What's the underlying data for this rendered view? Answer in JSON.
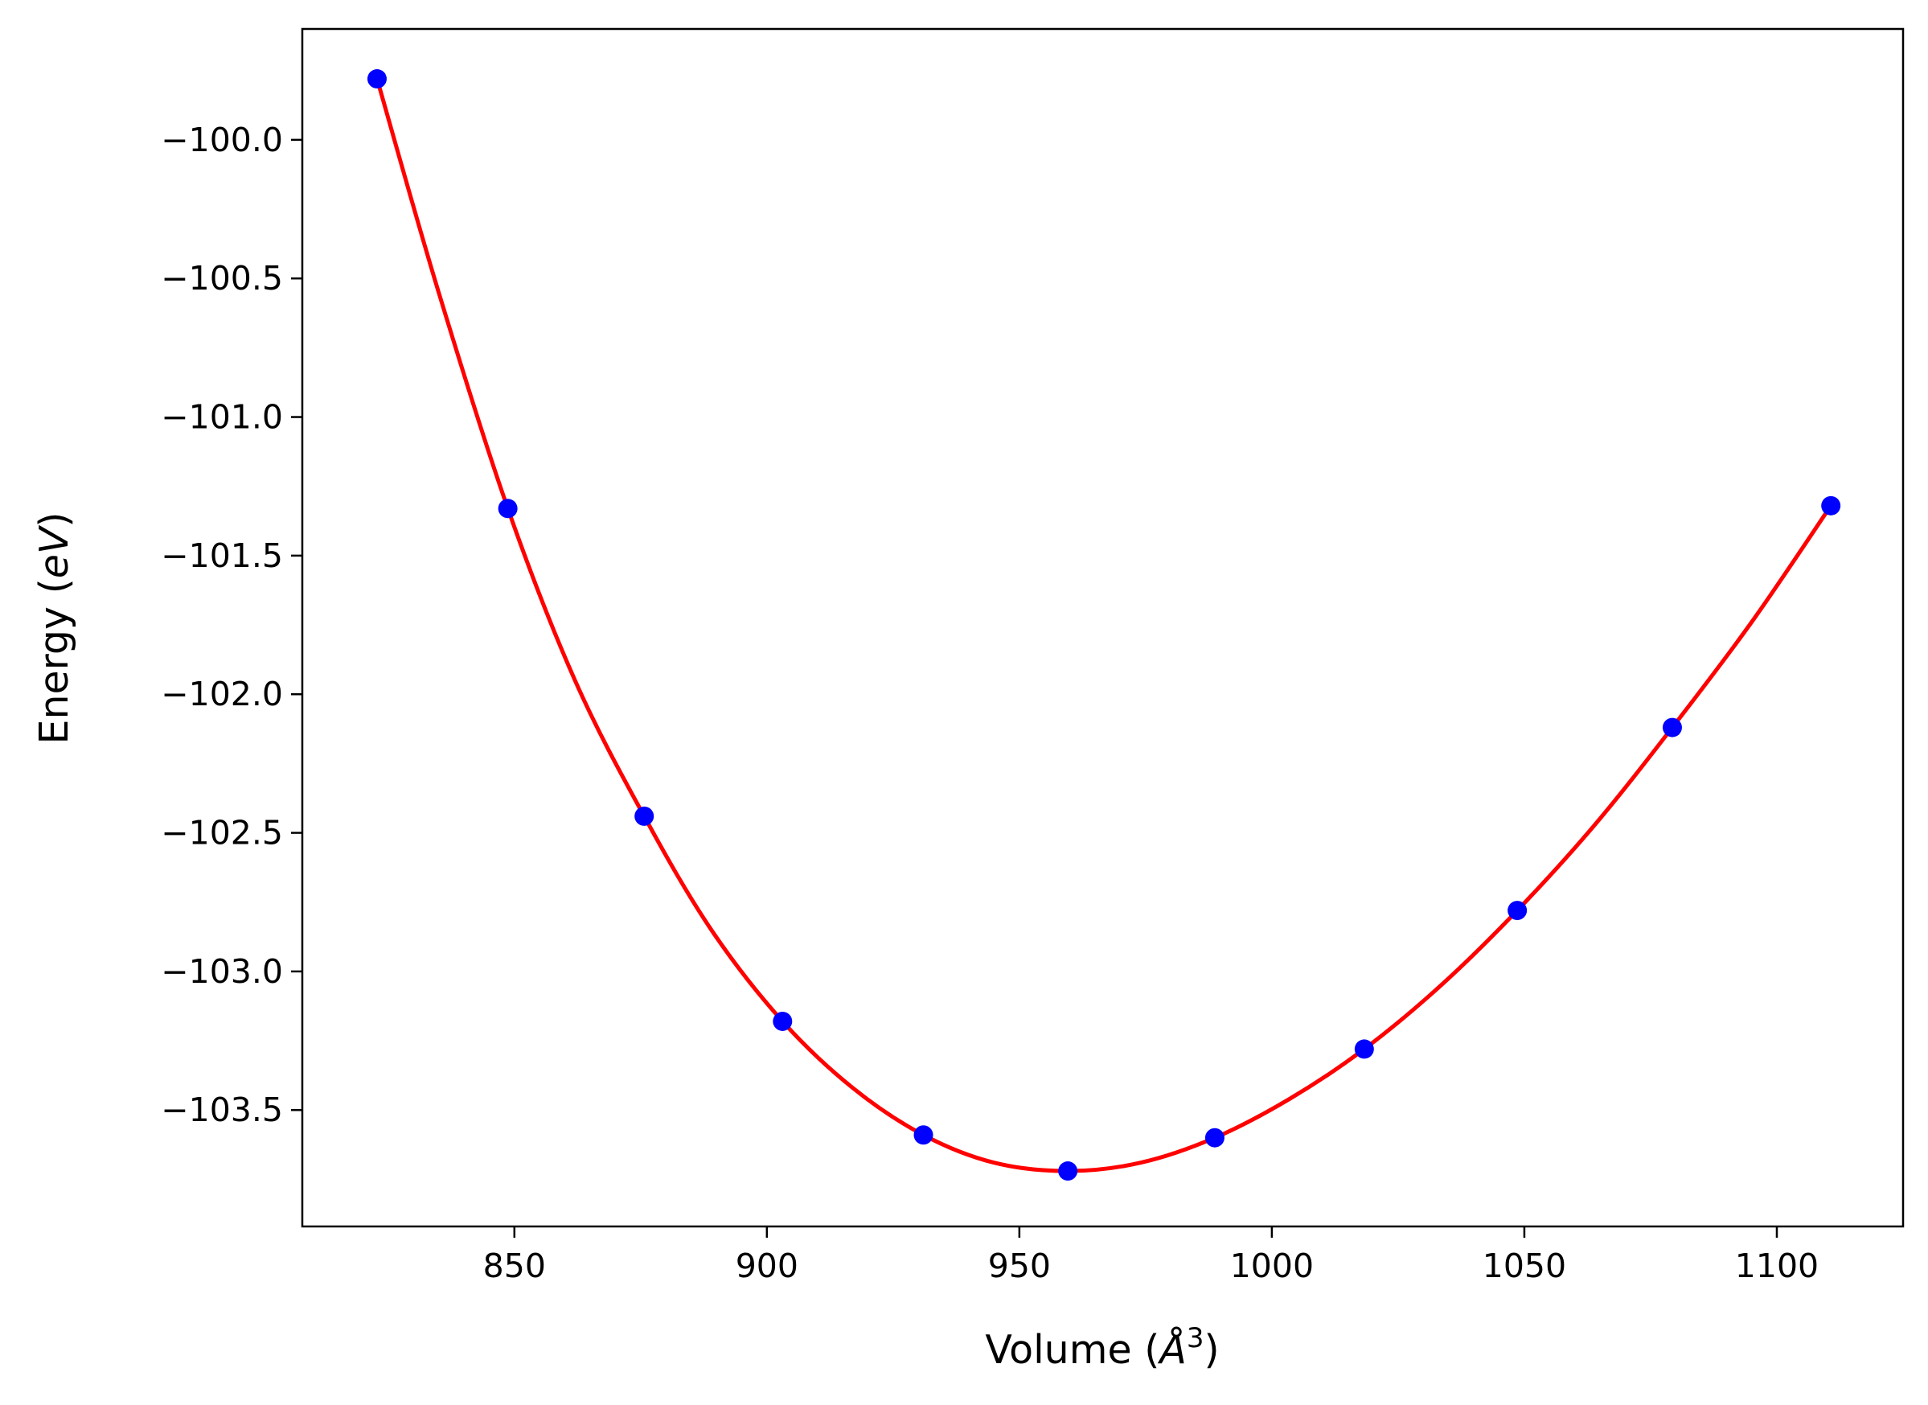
{
  "chart_data": {
    "type": "scatter",
    "title": "",
    "xlabel": {
      "prefix": "Volume (",
      "symbol": "Å",
      "exponent": "3",
      "suffix": ")"
    },
    "ylabel": {
      "prefix": "Energy (",
      "symbol": "eV",
      "suffix": ")"
    },
    "xlim": [
      808,
      1125
    ],
    "ylim": [
      -103.92,
      -99.6
    ],
    "x_ticks": [
      850,
      900,
      950,
      1000,
      1050,
      1100
    ],
    "x_tick_labels": [
      "850",
      "900",
      "950",
      "1000",
      "1050",
      "1100"
    ],
    "y_ticks": [
      -100.0,
      -100.5,
      -101.0,
      -101.5,
      -102.0,
      -102.5,
      -103.0,
      -103.5
    ],
    "y_tick_labels": [
      "−100.0",
      "−100.5",
      "−101.0",
      "−101.5",
      "−102.0",
      "−102.5",
      "−103.0",
      "−103.5"
    ],
    "grid": false,
    "legend": "none",
    "series": [
      {
        "kind": "points",
        "color": "#0000ff",
        "x": [
          822.8,
          848.7,
          875.7,
          903.1,
          931.0,
          959.6,
          988.7,
          1018.3,
          1048.6,
          1079.3,
          1110.7
        ],
        "y": [
          -99.78,
          -101.33,
          -102.44,
          -103.18,
          -103.59,
          -103.72,
          -103.6,
          -103.28,
          -102.78,
          -102.12,
          -101.32
        ]
      },
      {
        "kind": "fit-curve",
        "color": "#ff0000",
        "x": [
          822.8,
          835.0,
          848.7,
          862.0,
          875.7,
          889.0,
          903.1,
          917.0,
          931.0,
          945.0,
          959.6,
          974.0,
          988.7,
          1003.5,
          1018.3,
          1033.5,
          1048.6,
          1064.0,
          1079.3,
          1095.0,
          1110.7
        ],
        "y": [
          -99.78,
          -100.55,
          -101.33,
          -101.95,
          -102.44,
          -102.85,
          -103.18,
          -103.42,
          -103.59,
          -103.69,
          -103.72,
          -103.69,
          -103.6,
          -103.46,
          -103.28,
          -103.05,
          -102.78,
          -102.47,
          -102.12,
          -101.74,
          -101.32
        ]
      }
    ]
  }
}
